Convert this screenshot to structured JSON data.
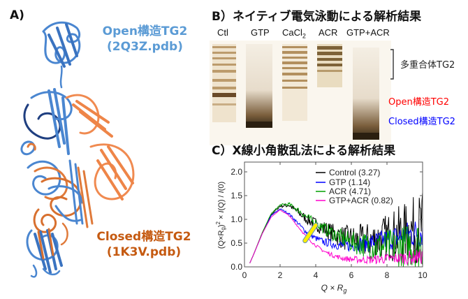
{
  "panel_a": {
    "label": "A)",
    "open": {
      "line1": "Open構造TG2",
      "line2": "(2Q3Z.pdb)",
      "color": "#5b9bd5"
    },
    "closed": {
      "line1": "Closed構造TG2",
      "line2": "(1K3V.pdb)",
      "color": "#c55a11"
    }
  },
  "panel_b": {
    "title": "B）ネイティブ電気泳動による解析結果",
    "lanes": [
      "Ctl",
      "GTP",
      "CaCl2",
      "ACR",
      "GTP+ACR"
    ],
    "lane_caci_main": "CaCl",
    "lane_caci_sub": "2",
    "annotations": {
      "multimer": "多重合体TG2",
      "open": "Open構造TG2",
      "closed": "Closed構造TG2",
      "open_color": "#ff0000",
      "closed_color": "#0000ff"
    }
  },
  "panel_c": {
    "title": "C）X線小角散乱法による解析結果"
  },
  "chart_data": {
    "type": "line",
    "title": "X線小角散乱法による解析結果",
    "xlabel": "Q × Rg",
    "ylabel": "(Q×Rg)^2 × I(Q) / I(0)",
    "xlim": [
      0,
      10
    ],
    "ylim": [
      0,
      2.2
    ],
    "xticks": [
      "0",
      "2",
      "4",
      "6",
      "8",
      "10"
    ],
    "yticks": [
      "0.0",
      "0.5",
      "1.0",
      "1.5",
      "2.0"
    ],
    "grid": false,
    "legend_position": "upper right",
    "x": [
      0.3,
      0.5,
      1.0,
      1.5,
      2.0,
      2.5,
      3.0,
      3.5,
      4.0,
      4.5,
      5.0,
      5.5,
      6.0,
      6.5,
      7.0,
      7.5,
      8.0,
      8.5,
      9.0,
      9.5,
      10.0
    ],
    "series": [
      {
        "name": "Control (3.27)",
        "color": "#000000",
        "values": [
          0.08,
          0.25,
          0.72,
          1.1,
          1.28,
          1.3,
          1.15,
          1.0,
          0.9,
          0.8,
          0.7,
          0.62,
          0.58,
          0.55,
          0.55,
          0.58,
          0.62,
          0.68,
          0.72,
          0.78,
          0.85
        ]
      },
      {
        "name": "GTP (1.14)",
        "color": "#0000ff",
        "values": [
          0.08,
          0.25,
          0.7,
          1.08,
          1.22,
          1.12,
          0.92,
          0.72,
          0.6,
          0.52,
          0.48,
          0.45,
          0.45,
          0.48,
          0.5,
          0.55,
          0.58,
          0.62,
          0.66,
          0.7,
          0.75
        ]
      },
      {
        "name": "ACR (4.71)",
        "color": "#00a000",
        "values": [
          0.08,
          0.25,
          0.72,
          1.12,
          1.3,
          1.32,
          1.2,
          1.05,
          0.92,
          0.8,
          0.7,
          0.6,
          0.52,
          0.48,
          0.45,
          0.42,
          0.42,
          0.42,
          0.44,
          0.46,
          0.5
        ]
      },
      {
        "name": "GTP+ACR (0.82)",
        "color": "#ff00cc",
        "values": [
          0.08,
          0.25,
          0.7,
          1.05,
          1.2,
          1.08,
          0.85,
          0.62,
          0.45,
          0.32,
          0.24,
          0.18,
          0.16,
          0.15,
          0.15,
          0.16,
          0.17,
          0.18,
          0.19,
          0.2,
          0.22
        ]
      }
    ],
    "annotations": [
      {
        "type": "arrow",
        "color": "#ffee00",
        "from": [
          4.0,
          0.88
        ],
        "to": [
          3.4,
          0.55
        ]
      }
    ]
  }
}
